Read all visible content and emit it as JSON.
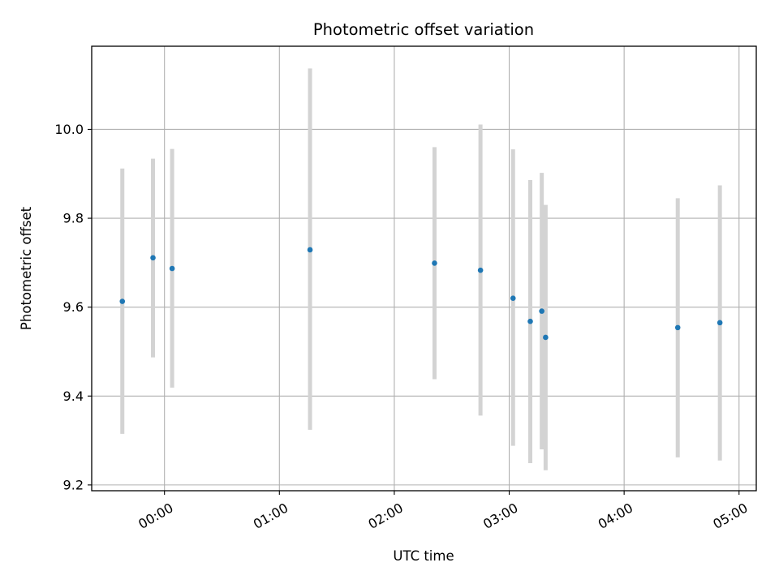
{
  "chart_data": {
    "type": "scatter",
    "title": "Photometric offset variation",
    "xlabel": "UTC time",
    "ylabel": "Photometric offset",
    "x_axis_type": "time",
    "xlim": [
      "23:22",
      "05:09"
    ],
    "ylim": [
      9.187,
      10.187
    ],
    "grid": true,
    "x_ticks": [
      "00:00",
      "01:00",
      "02:00",
      "03:00",
      "04:00",
      "05:00"
    ],
    "y_ticks": [
      "9.2",
      "9.4",
      "9.6",
      "9.8",
      "10.0"
    ],
    "point_color": "#1f77b4",
    "errorbar_color": "#d3d3d3",
    "points": [
      {
        "t": "23:38",
        "y": 9.613,
        "low": 9.315,
        "high": 9.912
      },
      {
        "t": "23:54",
        "y": 9.711,
        "low": 9.487,
        "high": 9.934
      },
      {
        "t": "00:04",
        "y": 9.687,
        "low": 9.419,
        "high": 9.956
      },
      {
        "t": "01:16",
        "y": 9.729,
        "low": 9.324,
        "high": 10.137
      },
      {
        "t": "02:21",
        "y": 9.699,
        "low": 9.438,
        "high": 9.96
      },
      {
        "t": "02:45",
        "y": 9.683,
        "low": 9.356,
        "high": 10.011
      },
      {
        "t": "03:02",
        "y": 9.62,
        "low": 9.288,
        "high": 9.955
      },
      {
        "t": "03:11",
        "y": 9.568,
        "low": 9.249,
        "high": 9.886
      },
      {
        "t": "03:17",
        "y": 9.591,
        "low": 9.28,
        "high": 9.902
      },
      {
        "t": "03:19",
        "y": 9.532,
        "low": 9.233,
        "high": 9.83
      },
      {
        "t": "04:28",
        "y": 9.554,
        "low": 9.262,
        "high": 9.845
      },
      {
        "t": "04:50",
        "y": 9.565,
        "low": 9.255,
        "high": 9.874
      }
    ]
  }
}
